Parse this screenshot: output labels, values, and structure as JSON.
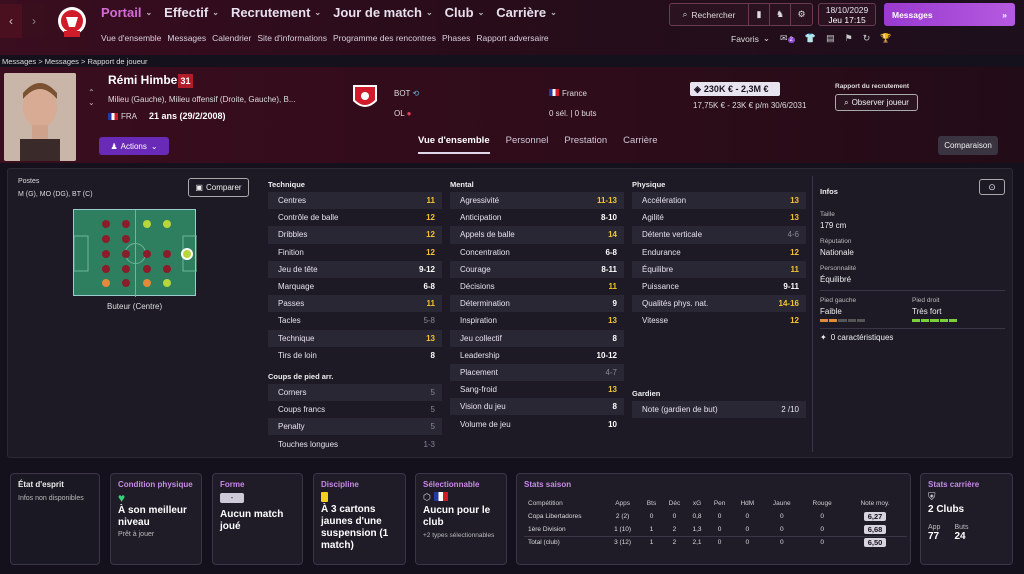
{
  "nav": {
    "menu": [
      "Portail",
      "Effectif",
      "Recrutement",
      "Jour de match",
      "Club",
      "Carrière"
    ],
    "submenu": [
      "Vue d'ensemble",
      "Messages",
      "Calendrier",
      "Site d'informations",
      "Programme des rencontres",
      "Phases",
      "Rapport adversaire"
    ],
    "search_label": "Rechercher",
    "date": "18/10/2029",
    "time": "Jeu  17:15",
    "messages_label": "Messages",
    "favorites_label": "Favoris",
    "fav_badge": "2"
  },
  "breadcrumb": [
    "Messages",
    "Messages",
    "Rapport de joueur"
  ],
  "player": {
    "name": "Rémi Himbert",
    "number": "31",
    "positions_text": "Milieu (Gauche), Milieu offensif (Droite, Gauche), B...",
    "nationality": "FRA",
    "age": "21 ans (29/2/2008)",
    "actions_label": "Actions",
    "club_line1": "BOT",
    "club_line2": "OL",
    "intl_country": "France",
    "intl_caps": "0 sél. | 0 buts",
    "value": "230K € - 2,3M €",
    "wage": "17,75K € - 23K € p/m  30/6/2031",
    "scout_label": "Rapport du recrutement",
    "scout_button": "Observer joueur"
  },
  "tabs": [
    "Vue d'ensemble",
    "Personnel",
    "Prestation",
    "Carrière"
  ],
  "compare_button": "Comparaison",
  "positions_panel": {
    "label": "Postes",
    "list": "M (G), MO (DG), BT (C)",
    "compare_label": "Comparer",
    "best_position": "Buteur (Centre)"
  },
  "technique": {
    "title": "Technique",
    "rows": [
      {
        "n": "Centres",
        "v": "11",
        "c": "hi"
      },
      {
        "n": "Contrôle de balle",
        "v": "12",
        "c": "hi"
      },
      {
        "n": "Dribbles",
        "v": "12",
        "c": "hi"
      },
      {
        "n": "Finition",
        "v": "12",
        "c": "hi"
      },
      {
        "n": "Jeu de tête",
        "v": "9-12",
        "c": "mid"
      },
      {
        "n": "Marquage",
        "v": "6-8",
        "c": "mid"
      },
      {
        "n": "Passes",
        "v": "11",
        "c": "hi"
      },
      {
        "n": "Tacles",
        "v": "5-8",
        "c": "lo"
      },
      {
        "n": "Technique",
        "v": "13",
        "c": "hi"
      },
      {
        "n": "Tirs de loin",
        "v": "8",
        "c": "mid"
      }
    ],
    "setpieces_title": "Coups de pied arr.",
    "setpieces": [
      {
        "n": "Corners",
        "v": "5",
        "c": "lo"
      },
      {
        "n": "Coups francs",
        "v": "5",
        "c": "lo"
      },
      {
        "n": "Penalty",
        "v": "5",
        "c": "lo"
      },
      {
        "n": "Touches longues",
        "v": "1-3",
        "c": "lo"
      }
    ]
  },
  "mental": {
    "title": "Mental",
    "rows": [
      {
        "n": "Agressivité",
        "v": "11-13",
        "c": "hi"
      },
      {
        "n": "Anticipation",
        "v": "8-10",
        "c": "mid"
      },
      {
        "n": "Appels de balle",
        "v": "14",
        "c": "hi"
      },
      {
        "n": "Concentration",
        "v": "6-8",
        "c": "mid"
      },
      {
        "n": "Courage",
        "v": "8-11",
        "c": "mid"
      },
      {
        "n": "Décisions",
        "v": "11",
        "c": "hi"
      },
      {
        "n": "Détermination",
        "v": "9",
        "c": "mid"
      },
      {
        "n": "Inspiration",
        "v": "13",
        "c": "hi"
      },
      {
        "n": "Jeu collectif",
        "v": "8",
        "c": "mid"
      },
      {
        "n": "Leadership",
        "v": "10-12",
        "c": "mid"
      },
      {
        "n": "Placement",
        "v": "4-7",
        "c": "lo"
      },
      {
        "n": "Sang-froid",
        "v": "13",
        "c": "hi"
      },
      {
        "n": "Vision du jeu",
        "v": "8",
        "c": "mid"
      },
      {
        "n": "Volume de jeu",
        "v": "10",
        "c": "mid"
      }
    ]
  },
  "physique": {
    "title": "Physique",
    "rows": [
      {
        "n": "Accélération",
        "v": "13",
        "c": "hi"
      },
      {
        "n": "Agilité",
        "v": "13",
        "c": "hi"
      },
      {
        "n": "Détente verticale",
        "v": "4-6",
        "c": "lo"
      },
      {
        "n": "Endurance",
        "v": "12",
        "c": "hi"
      },
      {
        "n": "Équilibre",
        "v": "11",
        "c": "hi"
      },
      {
        "n": "Puissance",
        "v": "9-11",
        "c": "mid"
      },
      {
        "n": "Qualités phys. nat.",
        "v": "14-16",
        "c": "hi"
      },
      {
        "n": "Vitesse",
        "v": "12",
        "c": "hi"
      }
    ],
    "gk_title": "Gardien",
    "gk": [
      {
        "n": "Note (gardien de but)",
        "v": "2 /10",
        "c": "plain"
      }
    ]
  },
  "info": {
    "title": "Infos",
    "height_label": "Taille",
    "height": "179 cm",
    "rep_label": "Réputation",
    "rep": "Nationale",
    "pers_label": "Personnalité",
    "pers": "Équilibré",
    "left_label": "Pied gauche",
    "left": "Faible",
    "right_label": "Pied droit",
    "right": "Très fort",
    "traits": "0 caractéristiques"
  },
  "cards": {
    "mood_title": "État d'esprit",
    "mood_text": "Infos non disponibles",
    "fitness_title": "Condition physique",
    "fitness_big": "À son meilleur niveau",
    "fitness_small": "Prêt à jouer",
    "form_title": "Forme",
    "form_badge": "-",
    "form_big": "Aucun match joué",
    "disc_title": "Discipline",
    "disc_big": "À 3 cartons jaunes d'une suspension (1 match)",
    "sel_title": "Sélectionnable",
    "sel_big": "Aucun pour le club",
    "sel_small": "+2 types sélectionnables",
    "season_title": "Stats saison",
    "career_title": "Stats carrière",
    "career_big": "2 Clubs",
    "career_app_label": "App",
    "career_app": "77",
    "career_goals_label": "Buts",
    "career_goals": "24"
  },
  "season_table": {
    "headers": [
      "Compétition",
      "Apps",
      "Bts",
      "Déc",
      "xG",
      "Pen",
      "HdM",
      "Jaune",
      "Rouge",
      "Note moy."
    ],
    "rows": [
      [
        "Copa Libertadores",
        "2 (2)",
        "0",
        "0",
        "0,8",
        "0",
        "0",
        "0",
        "0",
        "6,27"
      ],
      [
        "1ère Division",
        "1 (10)",
        "1",
        "2",
        "1,3",
        "0",
        "0",
        "0",
        "0",
        "6,68"
      ],
      [
        "Total (club)",
        "3 (12)",
        "1",
        "2",
        "2,1",
        "0",
        "0",
        "0",
        "0",
        "6,50"
      ]
    ]
  }
}
